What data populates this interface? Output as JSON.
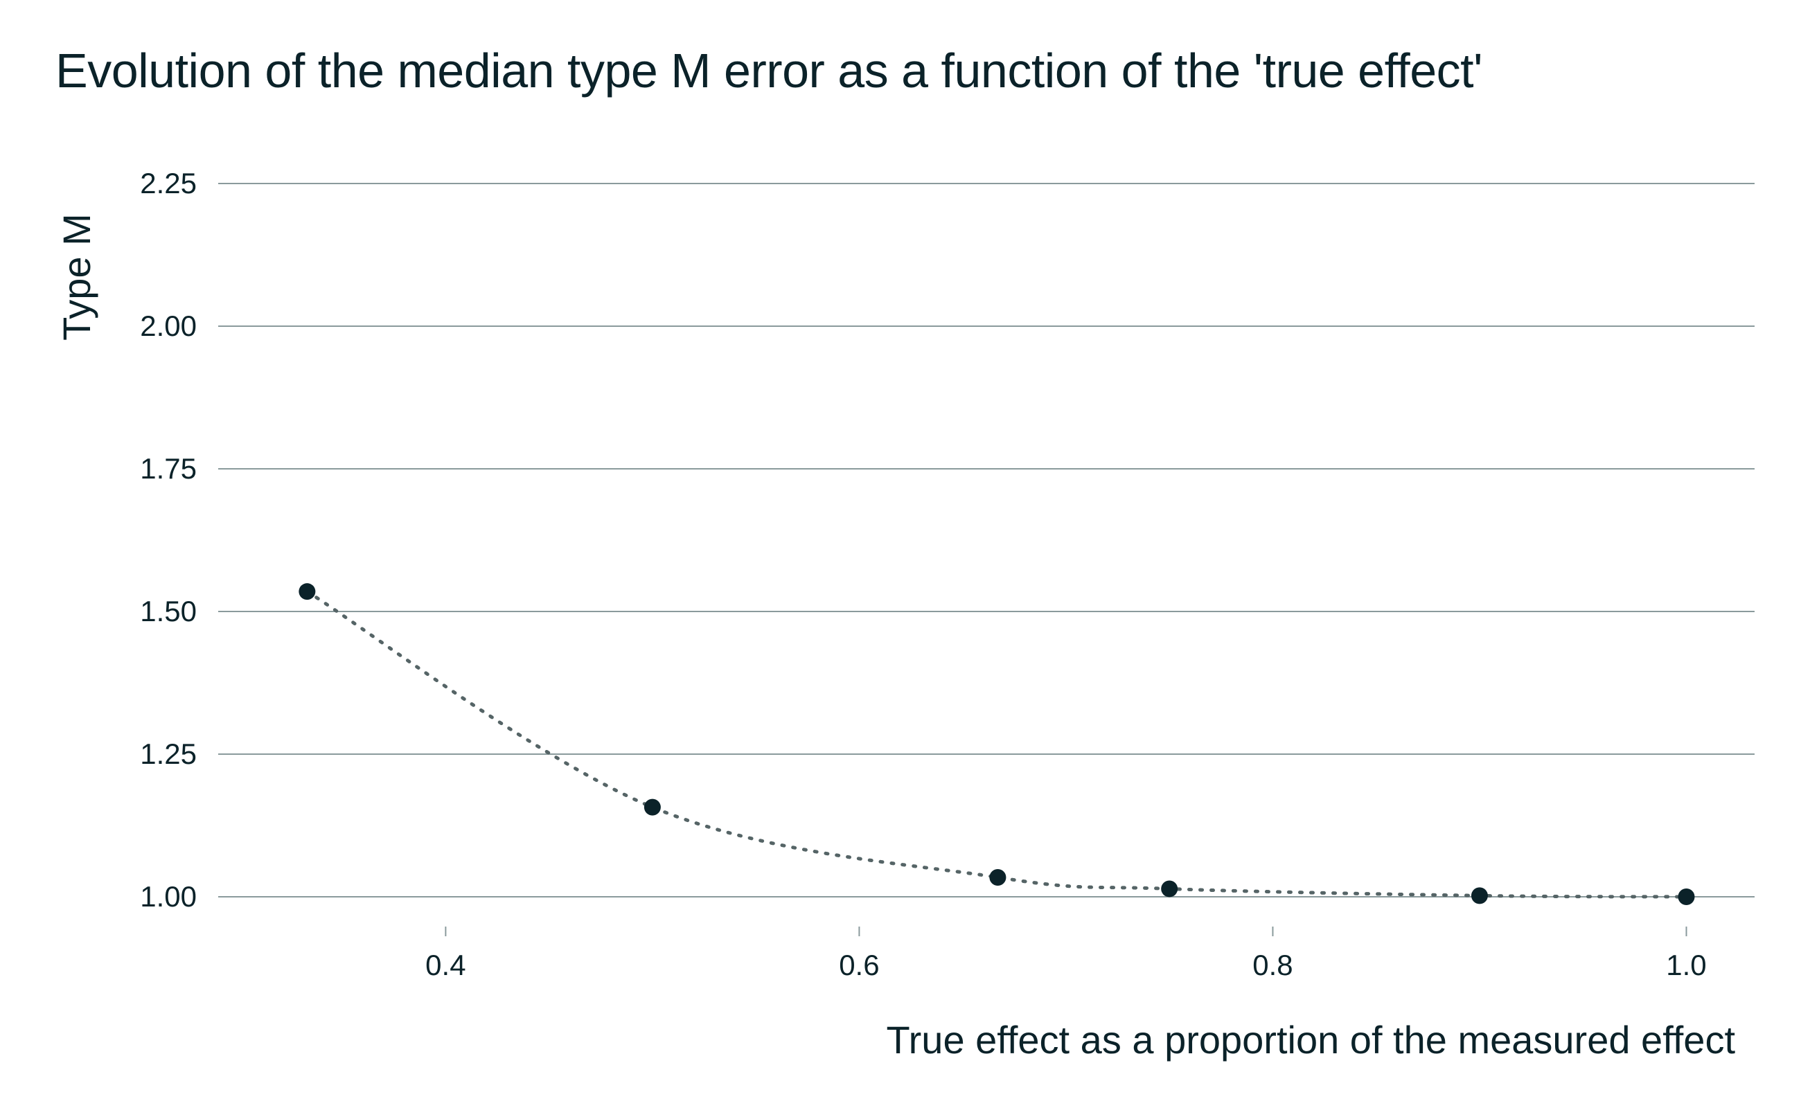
{
  "chart_data": {
    "type": "line",
    "title": "Evolution of the median type M error as a function of the 'true effect'",
    "xlabel": "True effect as a proportion of the measured effect",
    "ylabel": "Type M",
    "xlim": [
      0.29,
      1.033
    ],
    "ylim": [
      0.95,
      2.25
    ],
    "x_ticks": [
      0.4,
      0.6,
      0.8,
      1.0
    ],
    "x_tick_labels": [
      "0.4",
      "0.6",
      "0.8",
      "1.0"
    ],
    "y_ticks": [
      1.0,
      1.25,
      1.5,
      1.75,
      2.0,
      2.25
    ],
    "y_tick_labels": [
      "1.00",
      "1.25",
      "1.50",
      "1.75",
      "2.00",
      "2.25"
    ],
    "grid": "horizontal",
    "legend": "none",
    "line_style": "dotted",
    "colors": {
      "points": "#0b2229",
      "line": "#556466",
      "grid": "#8a9a9c",
      "text": "#0b2229"
    },
    "series": [
      {
        "x": [
          0.333,
          0.5,
          0.667,
          0.75,
          0.9,
          1.0
        ],
        "y": [
          1.535,
          1.157,
          1.034,
          1.014,
          1.002,
          1.0
        ]
      }
    ]
  }
}
